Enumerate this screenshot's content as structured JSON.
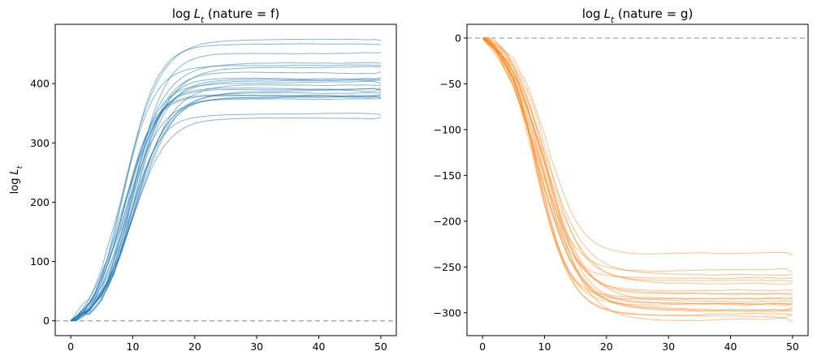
{
  "chart_data": [
    {
      "type": "line",
      "title_prefix": "log",
      "title_var": "L",
      "title_sub": "t",
      "title_suffix": " (nature = f)",
      "ylabel_prefix": "log",
      "ylabel_var": "L",
      "ylabel_sub": "t",
      "xlabel": "",
      "xlim": [
        -2.5,
        52.5
      ],
      "ylim": [
        -25,
        500
      ],
      "xticks": [
        0,
        10,
        20,
        30,
        40,
        50
      ],
      "yticks": [
        0,
        100,
        200,
        300,
        400
      ],
      "reference_line_y": 0,
      "color": "#1f77b4",
      "line_alpha": 0.55,
      "n_steps": 50,
      "finals": [
        473,
        466,
        452,
        434,
        431,
        428,
        420,
        410,
        408,
        405,
        400,
        397,
        393,
        390,
        387,
        385,
        382,
        380,
        378,
        376,
        375,
        347,
        343
      ],
      "grid": false,
      "legend": "none"
    },
    {
      "type": "line",
      "title_prefix": "log",
      "title_var": "L",
      "title_sub": "t",
      "title_suffix": " (nature = g)",
      "ylabel_prefix": "",
      "ylabel_var": "",
      "ylabel_sub": "",
      "xlabel": "",
      "xlim": [
        -2.5,
        52.5
      ],
      "ylim": [
        -325,
        15
      ],
      "xticks": [
        0,
        10,
        20,
        30,
        40,
        50
      ],
      "yticks": [
        0,
        -50,
        -100,
        -150,
        -200,
        -250,
        -300
      ],
      "reference_line_y": 0,
      "color": "#ff7f0e",
      "line_alpha": 0.5,
      "n_steps": 50,
      "finals": [
        -237,
        -256,
        -258,
        -262,
        -265,
        -267,
        -276,
        -279,
        -281,
        -283,
        -285,
        -287,
        -289,
        -290,
        -292,
        -294,
        -296,
        -298,
        -301,
        -303,
        -310
      ],
      "grid": false,
      "legend": "none"
    }
  ]
}
